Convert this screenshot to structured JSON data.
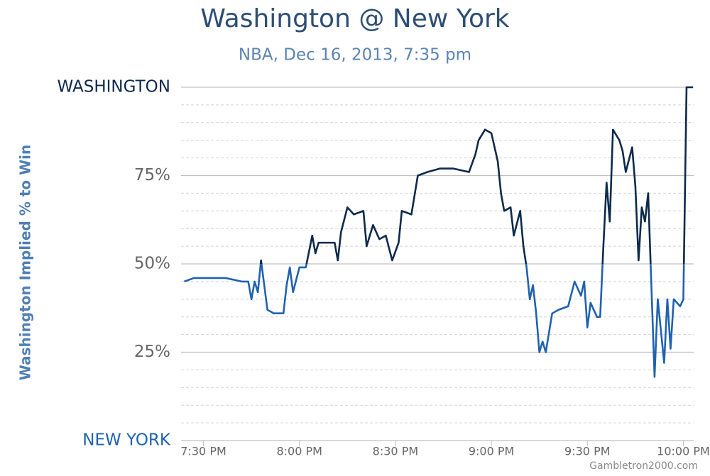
{
  "chart_data": {
    "type": "line",
    "title": "Washington @ New York",
    "subtitle": "NBA, Dec 16, 2013, 7:35 pm",
    "y_label": "Washington Implied % to Win",
    "watermark": "Gambletron2000.com",
    "x": [
      "19:24",
      "19:27",
      "19:33",
      "19:37",
      "19:42",
      "19:44",
      "19:45",
      "19:46",
      "19:47",
      "19:48",
      "19:49",
      "19:50",
      "19:52",
      "19:55",
      "19:56",
      "19:57",
      "19:58",
      "20:00",
      "20:02",
      "20:04",
      "20:05",
      "20:06",
      "20:11",
      "20:12",
      "20:13",
      "20:15",
      "20:17",
      "20:20",
      "20:21",
      "20:23",
      "20:25",
      "20:27",
      "20:29",
      "20:31",
      "20:32",
      "20:35",
      "20:37",
      "20:40",
      "20:44",
      "20:48",
      "20:53",
      "20:55",
      "20:56",
      "20:58",
      "21:00",
      "21:01",
      "21:02",
      "21:03",
      "21:04",
      "21:06",
      "21:07",
      "21:09",
      "21:10",
      "21:11",
      "21:12",
      "21:13",
      "21:14",
      "21:15",
      "21:16",
      "21:17",
      "21:19",
      "21:21",
      "21:24",
      "21:26",
      "21:28",
      "21:29",
      "21:30",
      "21:31",
      "21:33",
      "21:34",
      "21:35",
      "21:36",
      "21:37",
      "21:38",
      "21:40",
      "21:41",
      "21:42",
      "21:44",
      "21:45",
      "21:46",
      "21:47",
      "21:48",
      "21:49",
      "21:50",
      "21:51",
      "21:52",
      "21:54",
      "21:55",
      "21:56",
      "21:57",
      "21:59",
      "22:00",
      "22:01",
      "22:03"
    ],
    "series": [
      {
        "name": "Washington Implied % to Win",
        "color": "#0c2a4c",
        "color_below": "#1f62b0",
        "values": [
          45,
          46,
          46,
          46,
          45,
          45,
          40,
          45,
          42,
          51,
          44,
          37,
          36,
          36,
          44,
          49,
          42,
          49,
          49,
          58,
          53,
          56,
          56,
          51,
          59,
          66,
          64,
          65,
          55,
          61,
          57,
          58,
          51,
          56,
          65,
          64,
          75,
          76,
          77,
          77,
          76,
          81,
          85,
          88,
          87,
          83,
          79,
          70,
          65,
          66,
          58,
          65,
          55,
          49,
          40,
          44,
          36,
          25,
          28,
          25,
          36,
          37,
          38,
          45,
          41,
          45,
          32,
          39,
          35,
          35,
          55,
          73,
          62,
          88,
          85,
          82,
          76,
          83,
          72,
          51,
          66,
          62,
          70,
          44,
          18,
          40,
          22,
          40,
          26,
          40,
          38,
          40,
          100,
          100
        ]
      }
    ],
    "xlim": [
      "19:23",
      "22:05"
    ],
    "xticks": [
      {
        "value": "19:30",
        "label": "7:30 PM"
      },
      {
        "value": "20:00",
        "label": "8:00 PM"
      },
      {
        "value": "20:30",
        "label": "8:30 PM"
      },
      {
        "value": "21:00",
        "label": "9:00 PM"
      },
      {
        "value": "21:30",
        "label": "9:30 PM"
      },
      {
        "value": "22:00",
        "label": "10:00 PM"
      }
    ],
    "ylim": [
      0,
      100
    ],
    "yticks": [
      {
        "value": 0,
        "label": "NEW YORK"
      },
      {
        "value": 25,
        "label": "25%"
      },
      {
        "value": 50,
        "label": "50%"
      },
      {
        "value": 75,
        "label": "75%"
      },
      {
        "value": 100,
        "label": "WASHINGTON"
      }
    ],
    "minor_yticks": [
      5,
      10,
      15,
      20,
      30,
      35,
      40,
      45,
      55,
      60,
      65,
      70,
      80,
      85,
      90,
      95
    ],
    "grid": true
  }
}
